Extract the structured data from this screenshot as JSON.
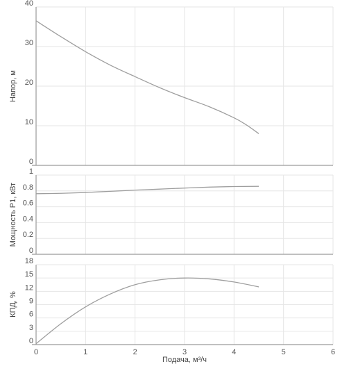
{
  "chart_data": [
    {
      "type": "line",
      "ylabel": "Напор, м",
      "xlim": [
        0,
        6
      ],
      "ylim": [
        0,
        40
      ],
      "y_ticks": [
        0,
        10,
        20,
        30,
        40
      ],
      "grid": true,
      "color": "#9e9e9e",
      "x": [
        0,
        0.5,
        1,
        1.5,
        2,
        2.5,
        3,
        3.5,
        4,
        4.25,
        4.5
      ],
      "y": [
        36.5,
        32.5,
        28.7,
        25.3,
        22.4,
        19.6,
        17.1,
        14.8,
        12.0,
        10.2,
        8.0
      ]
    },
    {
      "type": "line",
      "ylabel": "Мощность P1, кВт",
      "xlim": [
        0,
        6
      ],
      "ylim": [
        0,
        1
      ],
      "y_ticks": [
        0,
        0.2,
        0.4,
        0.6,
        0.8,
        1
      ],
      "grid": true,
      "color": "#9e9e9e",
      "x": [
        0,
        0.5,
        1,
        1.5,
        2,
        2.5,
        3,
        3.5,
        4,
        4.5
      ],
      "y": [
        0.765,
        0.77,
        0.78,
        0.795,
        0.81,
        0.823,
        0.836,
        0.848,
        0.855,
        0.858
      ]
    },
    {
      "type": "line",
      "ylabel": "КПД, %",
      "xlabel": "Подача, м³/ч",
      "xlim": [
        0,
        6
      ],
      "ylim": [
        0,
        18
      ],
      "x_ticks": [
        0,
        1,
        2,
        3,
        4,
        5,
        6
      ],
      "y_ticks": [
        0,
        3,
        6,
        9,
        12,
        15,
        18
      ],
      "grid": true,
      "color": "#9e9e9e",
      "x": [
        0,
        0.5,
        1,
        1.5,
        2,
        2.5,
        3,
        3.5,
        4,
        4.5
      ],
      "y": [
        0.2,
        4.7,
        8.5,
        11.4,
        13.5,
        14.6,
        15.0,
        14.8,
        14.1,
        13.0
      ]
    }
  ]
}
